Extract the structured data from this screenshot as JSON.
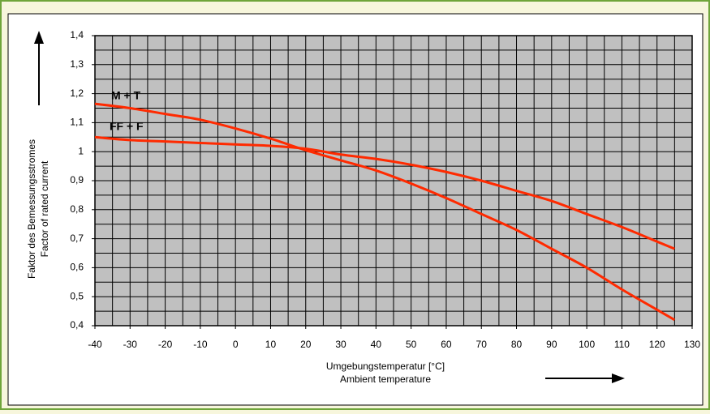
{
  "chart_data": {
    "type": "line",
    "x_label": [
      "Umgebungstemperatur [°C]",
      "Ambient temperature"
    ],
    "y_label": [
      "Faktor des Bemessungsstromes",
      "Factor of rated current"
    ],
    "x": [
      -40,
      -30,
      -20,
      -10,
      0,
      10,
      20,
      30,
      40,
      50,
      60,
      70,
      80,
      90,
      100,
      110,
      120,
      125
    ],
    "series": [
      {
        "name": "M + T",
        "color": "#ff2a00",
        "values": [
          1.165,
          1.15,
          1.13,
          1.11,
          1.08,
          1.045,
          1.005,
          0.97,
          0.935,
          0.89,
          0.84,
          0.785,
          0.73,
          0.665,
          0.6,
          0.525,
          0.455,
          0.42
        ]
      },
      {
        "name": "FF + F",
        "color": "#ff2a00",
        "values": [
          1.05,
          1.04,
          1.035,
          1.03,
          1.025,
          1.02,
          1.01,
          0.99,
          0.975,
          0.955,
          0.93,
          0.9,
          0.865,
          0.83,
          0.785,
          0.74,
          0.69,
          0.665
        ]
      }
    ],
    "xlim": [
      -40,
      130
    ],
    "xticks": [
      -40,
      -30,
      -20,
      -10,
      0,
      10,
      20,
      30,
      40,
      50,
      60,
      70,
      80,
      90,
      100,
      110,
      120,
      130
    ],
    "ylim": [
      0.4,
      1.4
    ],
    "yticks": [
      {
        "value": 0.4,
        "label": "0,4"
      },
      {
        "value": 0.5,
        "label": "0,5"
      },
      {
        "value": 0.6,
        "label": "0,6"
      },
      {
        "value": 0.7,
        "label": "0,7"
      },
      {
        "value": 0.8,
        "label": "0,8"
      },
      {
        "value": 0.9,
        "label": "0,9"
      },
      1,
      {
        "value": 1.1,
        "label": "1,1"
      },
      {
        "value": 1.2,
        "label": "1,2"
      },
      {
        "value": 1.3,
        "label": "1,3"
      },
      {
        "value": 1.4,
        "label": "1,4"
      }
    ],
    "grid": true,
    "minor_grid": true,
    "plot_background": "#c0c0c0"
  }
}
